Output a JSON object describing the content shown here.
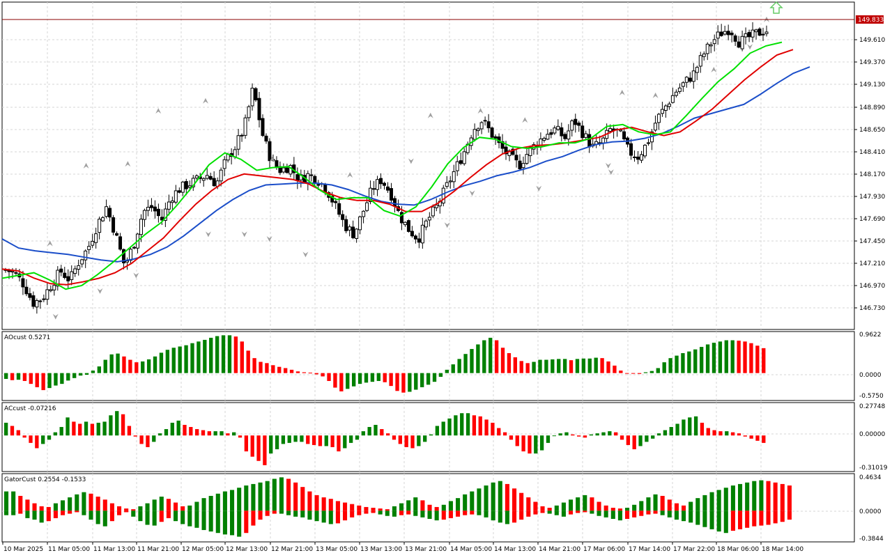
{
  "colors": {
    "bull": "#008000",
    "bear": "#ff0000",
    "candle": "#000000",
    "jaw": "#1b4ec9",
    "teeth": "#e00000",
    "lips": "#00e000",
    "grid": "#d6d6d6",
    "price_line": "#8b0000",
    "price_label_bg": "#c00000",
    "fractal": "#a0a0a0",
    "arrow": "#66cc66"
  },
  "current_price": "149.833",
  "chart_data": [
    {
      "type": "candlestick",
      "panel": "main",
      "y_ticks": [
        "149.610",
        "149.370",
        "149.130",
        "148.890",
        "148.650",
        "148.410",
        "148.170",
        "147.930",
        "147.690",
        "147.450",
        "147.210",
        "146.970",
        "146.730"
      ],
      "ylim": [
        146.56,
        150.04
      ],
      "x_tick_labels": [
        "10 Mar 2025",
        "11 Mar 05:00",
        "11 Mar 13:00",
        "11 Mar 21:00",
        "12 Mar 05:00",
        "12 Mar 13:00",
        "12 Mar 21:00",
        "13 Mar 05:00",
        "13 Mar 13:00",
        "13 Mar 21:00",
        "14 Mar 05:00",
        "14 Mar 13:00",
        "14 Mar 21:00",
        "17 Mar 06:00",
        "17 Mar 14:00",
        "17 Mar 22:00",
        "18 Mar 06:00",
        "18 Mar 14:00"
      ],
      "close_path": [
        147.21,
        147.18,
        147.05,
        146.85,
        146.9,
        147.05,
        147.2,
        147.1,
        147.3,
        147.45,
        147.7,
        147.9,
        147.6,
        147.25,
        147.5,
        147.85,
        147.9,
        147.75,
        148.0,
        148.1,
        148.15,
        148.2,
        148.25,
        148.15,
        148.4,
        148.55,
        148.75,
        149.2,
        148.7,
        148.4,
        148.3,
        148.35,
        148.2,
        148.25,
        148.2,
        148.1,
        147.9,
        147.7,
        147.6,
        147.85,
        148.1,
        148.2,
        148.05,
        147.8,
        147.65,
        147.55,
        147.75,
        147.9,
        148.1,
        148.3,
        148.5,
        148.75,
        148.85,
        148.7,
        148.55,
        148.45,
        148.35,
        148.5,
        148.6,
        148.7,
        148.75,
        148.65,
        148.85,
        148.7,
        148.55,
        148.6,
        148.75,
        148.7,
        148.5,
        148.45,
        148.6,
        148.85,
        149.0,
        149.15,
        149.25,
        149.35,
        149.55,
        149.7,
        149.8,
        149.85,
        149.7,
        149.75,
        149.8,
        149.83
      ],
      "fractals_up": [
        [
          16,
          147.5
        ],
        [
          29,
          148.35
        ],
        [
          44,
          148.37
        ],
        [
          55,
          148.95
        ],
        [
          72,
          149.06
        ],
        [
          96,
          148.42
        ],
        [
          124,
          148.25
        ],
        [
          153,
          148.9
        ],
        [
          171,
          148.95
        ],
        [
          187,
          148.85
        ],
        [
          222,
          149.15
        ],
        [
          234,
          149.12
        ],
        [
          255,
          149.4
        ],
        [
          274,
          149.95
        ]
      ],
      "fractals_down": [
        [
          18,
          146.7
        ],
        [
          34,
          146.98
        ],
        [
          47,
          147.15
        ],
        [
          73,
          147.6
        ],
        [
          86,
          147.6
        ],
        [
          95,
          147.55
        ],
        [
          108,
          147.38
        ],
        [
          146,
          148.4
        ],
        [
          159,
          147.7
        ],
        [
          168,
          148.05
        ],
        [
          192,
          148.1
        ],
        [
          217,
          148.35
        ],
        [
          218,
          148.28
        ],
        [
          268,
          149.65
        ]
      ],
      "series": [
        {
          "name": "jaw",
          "values": [
            147.55,
            147.45,
            147.42,
            147.4,
            147.38,
            147.35,
            147.32,
            147.3,
            147.33,
            147.38,
            147.46,
            147.58,
            147.72,
            147.86,
            147.98,
            148.08,
            148.14,
            148.15,
            148.16,
            148.16,
            148.14,
            148.09,
            148.02,
            147.96,
            147.93,
            147.92,
            147.98,
            148.06,
            148.13,
            148.18,
            148.24,
            148.28,
            148.33,
            148.4,
            148.45,
            148.52,
            148.58,
            148.61,
            148.62,
            148.65,
            148.7,
            148.78,
            148.87,
            148.92,
            148.97,
            149.02,
            149.13,
            149.25,
            149.36,
            149.43
          ]
        },
        {
          "name": "teeth",
          "values": [
            147.22,
            147.2,
            147.12,
            147.06,
            147.05,
            147.08,
            147.12,
            147.18,
            147.28,
            147.42,
            147.56,
            147.75,
            147.93,
            148.08,
            148.2,
            148.26,
            148.24,
            148.22,
            148.2,
            148.15,
            148.06,
            148.0,
            147.97,
            147.97,
            147.93,
            147.85,
            147.85,
            147.94,
            148.07,
            148.22,
            148.36,
            148.48,
            148.54,
            148.57,
            148.58,
            148.6,
            148.63,
            148.66,
            148.74,
            148.77,
            148.72,
            148.68,
            148.72,
            148.84,
            148.97,
            149.13,
            149.29,
            149.43,
            149.56,
            149.62
          ]
        },
        {
          "name": "lips",
          "values": [
            147.12,
            147.15,
            147.18,
            147.1,
            147.0,
            147.04,
            147.16,
            147.3,
            147.45,
            147.6,
            147.73,
            147.92,
            148.13,
            148.36,
            148.49,
            148.42,
            148.3,
            148.33,
            148.34,
            148.22,
            148.08,
            147.98,
            148.0,
            148.0,
            147.86,
            147.8,
            147.9,
            148.12,
            148.37,
            148.55,
            148.66,
            148.64,
            148.56,
            148.54,
            148.56,
            148.6,
            148.6,
            148.65,
            148.78,
            148.8,
            148.72,
            148.69,
            148.72,
            148.9,
            149.09,
            149.27,
            149.41,
            149.58,
            149.66,
            149.7
          ]
        }
      ]
    },
    {
      "type": "histogram",
      "panel": "ao1",
      "label": "AOcust 0.5271",
      "y_ticks": [
        "0.9622",
        "0.0000",
        "-0.5750"
      ],
      "ylim": [
        -0.66,
        1.0
      ],
      "values": [
        -0.14,
        -0.17,
        -0.16,
        -0.19,
        -0.26,
        -0.34,
        -0.41,
        -0.36,
        -0.3,
        -0.26,
        -0.18,
        -0.12,
        -0.06,
        -0.04,
        0.06,
        0.16,
        0.32,
        0.45,
        0.47,
        0.4,
        0.32,
        0.26,
        0.28,
        0.33,
        0.4,
        0.49,
        0.56,
        0.61,
        0.64,
        0.67,
        0.72,
        0.76,
        0.8,
        0.85,
        0.89,
        0.91,
        0.91,
        0.88,
        0.76,
        0.54,
        0.36,
        0.27,
        0.24,
        0.19,
        0.15,
        0.12,
        0.08,
        0.04,
        0.02,
        0.01,
        -0.03,
        -0.08,
        -0.19,
        -0.35,
        -0.44,
        -0.38,
        -0.32,
        -0.26,
        -0.23,
        -0.21,
        -0.19,
        -0.22,
        -0.31,
        -0.43,
        -0.47,
        -0.45,
        -0.4,
        -0.34,
        -0.28,
        -0.21,
        -0.09,
        0.08,
        0.21,
        0.34,
        0.46,
        0.58,
        0.69,
        0.79,
        0.85,
        0.79,
        0.61,
        0.48,
        0.38,
        0.29,
        0.24,
        0.27,
        0.32,
        0.32,
        0.33,
        0.34,
        0.34,
        0.31,
        0.34,
        0.35,
        0.35,
        0.37,
        0.36,
        0.28,
        0.18,
        0.06,
        0.0,
        -0.01,
        -0.02,
        0.02,
        0.05,
        0.12,
        0.26,
        0.36,
        0.42,
        0.48,
        0.52,
        0.57,
        0.63,
        0.69,
        0.73,
        0.76,
        0.79,
        0.79,
        0.78,
        0.76,
        0.72,
        0.66,
        0.6
      ]
    },
    {
      "type": "histogram",
      "panel": "ac",
      "label": "ACcust -0.07216",
      "y_ticks": [
        "0.27748",
        "0.00000",
        "-0.31019"
      ],
      "ylim": [
        -0.34,
        0.31
      ],
      "values": [
        0.12,
        0.09,
        0.05,
        -0.02,
        -0.07,
        -0.12,
        -0.08,
        -0.04,
        0.03,
        0.08,
        0.17,
        0.13,
        0.11,
        0.13,
        0.11,
        0.12,
        0.13,
        0.19,
        0.23,
        0.2,
        0.09,
        -0.01,
        -0.08,
        -0.11,
        -0.06,
        0.02,
        0.06,
        0.12,
        0.14,
        0.1,
        0.08,
        0.06,
        0.05,
        0.04,
        0.04,
        0.04,
        0.02,
        0.03,
        -0.02,
        -0.15,
        -0.2,
        -0.24,
        -0.28,
        -0.17,
        -0.13,
        -0.08,
        -0.07,
        -0.06,
        -0.06,
        -0.08,
        -0.09,
        -0.1,
        -0.1,
        -0.11,
        -0.15,
        -0.12,
        -0.07,
        -0.04,
        0.04,
        0.08,
        0.1,
        0.06,
        0.02,
        -0.04,
        -0.08,
        -0.11,
        -0.12,
        -0.1,
        -0.06,
        0.01,
        0.09,
        0.13,
        0.16,
        0.19,
        0.21,
        0.21,
        0.19,
        0.18,
        0.15,
        0.12,
        0.07,
        0.03,
        -0.04,
        -0.1,
        -0.15,
        -0.17,
        -0.17,
        -0.14,
        -0.07,
        0.0,
        0.02,
        0.03,
        0.01,
        -0.01,
        -0.02,
        0.01,
        0.02,
        0.03,
        0.04,
        0.03,
        -0.04,
        -0.09,
        -0.13,
        -0.1,
        -0.06,
        -0.03,
        0.02,
        0.05,
        0.08,
        0.11,
        0.15,
        0.17,
        0.18,
        0.12,
        0.07,
        0.05,
        0.04,
        0.04,
        0.03,
        0.02,
        -0.01,
        -0.03,
        -0.05,
        -0.07
      ]
    },
    {
      "type": "histogram_pair",
      "panel": "gator",
      "label": "GatorCust 0.2554 -0.1533",
      "y_ticks": [
        "0.4634",
        "0.0000",
        "-0.3844"
      ],
      "ylim": [
        -0.42,
        0.5
      ],
      "upper": [
        0.26,
        0.26,
        0.2,
        0.15,
        0.1,
        0.06,
        0.05,
        0.1,
        0.14,
        0.18,
        0.22,
        0.25,
        0.23,
        0.19,
        0.15,
        0.1,
        0.06,
        0.03,
        0.02,
        0.06,
        0.1,
        0.15,
        0.19,
        0.16,
        0.11,
        0.06,
        0.07,
        0.12,
        0.17,
        0.2,
        0.23,
        0.26,
        0.28,
        0.31,
        0.34,
        0.36,
        0.38,
        0.4,
        0.43,
        0.45,
        0.43,
        0.38,
        0.32,
        0.26,
        0.21,
        0.18,
        0.16,
        0.13,
        0.11,
        0.09,
        0.07,
        0.05,
        0.04,
        0.03,
        0.02,
        0.06,
        0.1,
        0.14,
        0.18,
        0.14,
        0.08,
        0.05,
        0.08,
        0.13,
        0.17,
        0.22,
        0.26,
        0.3,
        0.34,
        0.38,
        0.4,
        0.36,
        0.3,
        0.24,
        0.18,
        0.12,
        0.06,
        0.04,
        0.07,
        0.11,
        0.15,
        0.18,
        0.21,
        0.18,
        0.12,
        0.07,
        0.04,
        0.03,
        0.04,
        0.08,
        0.13,
        0.18,
        0.22,
        0.2,
        0.15,
        0.1,
        0.07,
        0.12,
        0.17,
        0.21,
        0.25,
        0.28,
        0.31,
        0.34,
        0.36,
        0.38,
        0.4,
        0.41,
        0.4,
        0.38,
        0.36,
        0.34
      ],
      "lower": [
        -0.06,
        -0.06,
        -0.04,
        -0.1,
        -0.12,
        -0.16,
        -0.14,
        -0.1,
        -0.06,
        -0.04,
        -0.02,
        -0.06,
        -0.12,
        -0.18,
        -0.21,
        -0.14,
        -0.06,
        -0.02,
        -0.08,
        -0.14,
        -0.19,
        -0.2,
        -0.15,
        -0.1,
        -0.14,
        -0.18,
        -0.21,
        -0.23,
        -0.26,
        -0.28,
        -0.3,
        -0.32,
        -0.33,
        -0.35,
        -0.3,
        -0.2,
        -0.12,
        -0.07,
        -0.04,
        -0.04,
        -0.06,
        -0.08,
        -0.09,
        -0.12,
        -0.14,
        -0.16,
        -0.18,
        -0.17,
        -0.13,
        -0.09,
        -0.06,
        -0.04,
        -0.03,
        -0.05,
        -0.07,
        -0.08,
        -0.06,
        -0.05,
        -0.07,
        -0.09,
        -0.11,
        -0.13,
        -0.12,
        -0.1,
        -0.08,
        -0.06,
        -0.05,
        -0.06,
        -0.09,
        -0.13,
        -0.16,
        -0.18,
        -0.16,
        -0.12,
        -0.08,
        -0.05,
        -0.03,
        -0.04,
        -0.06,
        -0.08,
        -0.05,
        -0.03,
        -0.02,
        -0.04,
        -0.07,
        -0.09,
        -0.11,
        -0.13,
        -0.11,
        -0.09,
        -0.07,
        -0.05,
        -0.04,
        -0.06,
        -0.09,
        -0.12,
        -0.14,
        -0.16,
        -0.19,
        -0.22,
        -0.25,
        -0.28,
        -0.3,
        -0.27,
        -0.25,
        -0.23,
        -0.21,
        -0.2,
        -0.19,
        -0.17,
        -0.15,
        -0.12
      ]
    }
  ]
}
